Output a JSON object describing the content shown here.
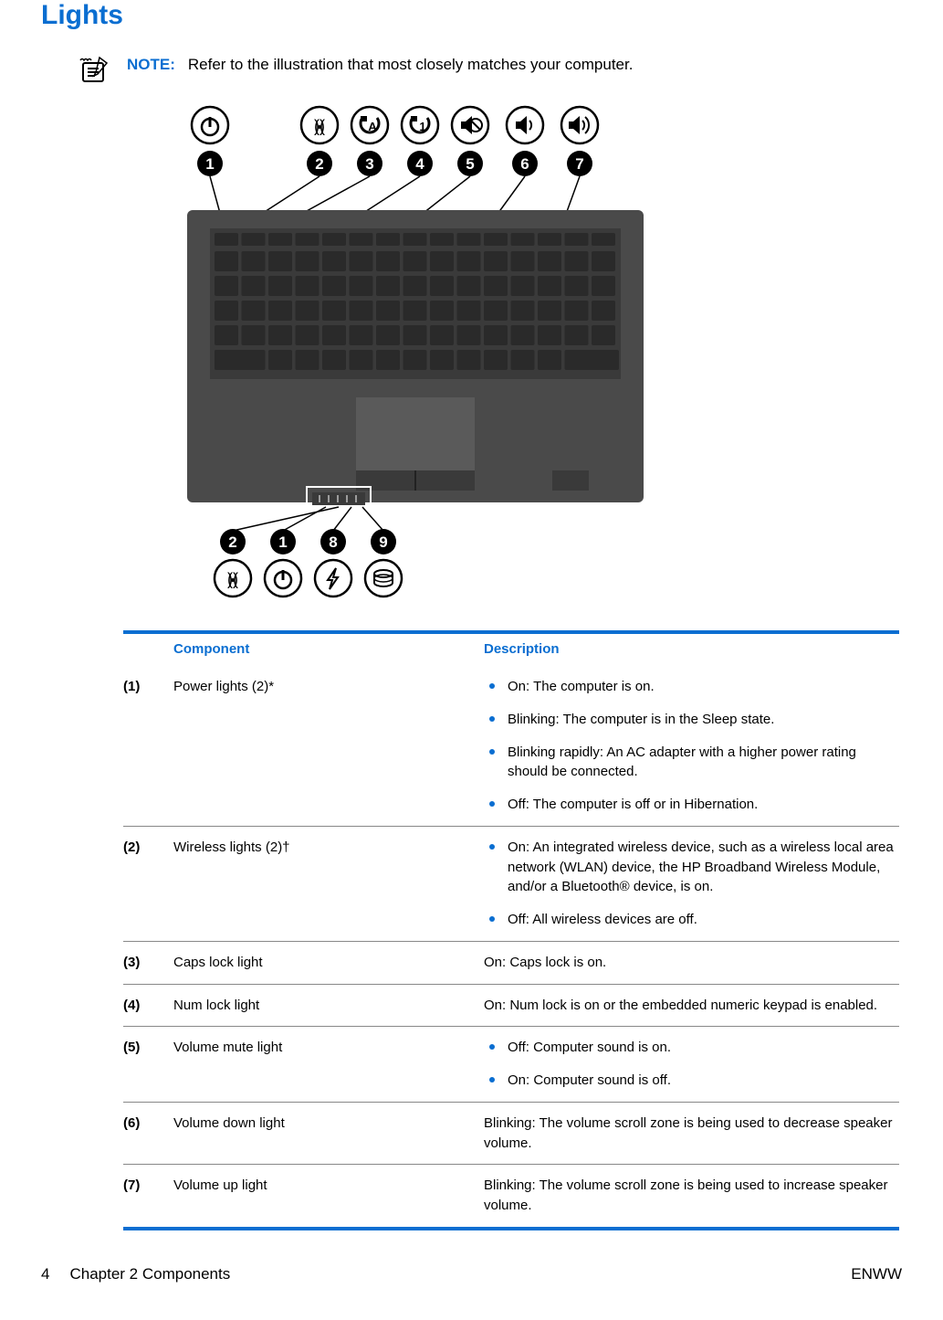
{
  "title": "Lights",
  "note": {
    "label": "NOTE:",
    "text": "Refer to the illustration that most closely matches your computer."
  },
  "illustration": {
    "top_callouts": [
      "1",
      "2",
      "3",
      "4",
      "5",
      "6",
      "7"
    ],
    "top_icons": [
      "power",
      "wireless",
      "caps-a",
      "numlock-1",
      "mute",
      "vol-down",
      "vol-up"
    ],
    "bottom_callouts": [
      "2",
      "1",
      "8",
      "9"
    ],
    "bottom_icons": [
      "wireless",
      "power",
      "lightning",
      "drive"
    ],
    "laptop_body_color": "#4a4a4a",
    "key_color": "#2d2d2d",
    "trackpad_color": "#5a5a5a",
    "icon_bg": "#ffffff",
    "icon_stroke": "#000000",
    "callout_bg": "#000000",
    "callout_text": "#ffffff"
  },
  "table": {
    "head": {
      "col1": "Component",
      "col2": "Description"
    },
    "rows": [
      {
        "num": "(1)",
        "name": "Power lights (2)*",
        "desc_type": "list",
        "items": [
          "On: The computer is on.",
          "Blinking: The computer is in the Sleep state.",
          "Blinking rapidly: An AC adapter with a higher power rating should be connected.",
          "Off: The computer is off or in Hibernation."
        ]
      },
      {
        "num": "(2)",
        "name": "Wireless lights (2)†",
        "desc_type": "list",
        "items": [
          "On: An integrated wireless device, such as a wireless local area network (WLAN) device, the HP Broadband Wireless Module, and/or a Bluetooth® device, is on.",
          "Off: All wireless devices are off."
        ]
      },
      {
        "num": "(3)",
        "name": "Caps lock light",
        "desc_type": "text",
        "text": "On: Caps lock is on."
      },
      {
        "num": "(4)",
        "name": "Num lock light",
        "desc_type": "text",
        "text": "On: Num lock is on or the embedded numeric keypad is enabled."
      },
      {
        "num": "(5)",
        "name": "Volume mute light",
        "desc_type": "list",
        "items": [
          "Off: Computer sound is on.",
          "On: Computer sound is off."
        ]
      },
      {
        "num": "(6)",
        "name": "Volume down light",
        "desc_type": "text",
        "text": "Blinking: The volume scroll zone is being used to decrease speaker volume."
      },
      {
        "num": "(7)",
        "name": "Volume up light",
        "desc_type": "text",
        "text": "Blinking: The volume scroll zone is being used to increase speaker volume."
      }
    ]
  },
  "footer": {
    "page_num": "4",
    "chapter": "Chapter 2   Components",
    "right": "ENWW"
  },
  "colors": {
    "accent": "#0a6ed1",
    "border": "#888888"
  }
}
